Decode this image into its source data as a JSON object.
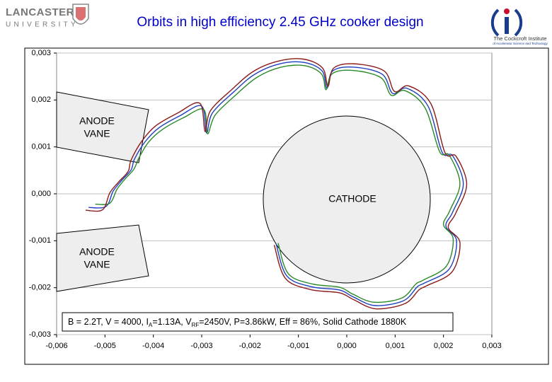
{
  "logos": {
    "left": {
      "name": "LANCASTER",
      "sub": "UNIVERSITY"
    },
    "right": {
      "name": "The Cockcroft Institute",
      "sub": "of Accelerator Science and Technology"
    }
  },
  "chart_data": {
    "type": "line",
    "title": "Orbits in high efficiency 2.45 GHz cooker design",
    "xlim": [
      -0.006,
      0.003
    ],
    "ylim": [
      -0.003,
      0.003
    ],
    "xticks": [
      {
        "value": -0.006,
        "label": "-0,006"
      },
      {
        "value": -0.005,
        "label": "-0,005"
      },
      {
        "value": -0.004,
        "label": "-0,004"
      },
      {
        "value": -0.003,
        "label": "-0,003"
      },
      {
        "value": -0.002,
        "label": "-0,002"
      },
      {
        "value": -0.001,
        "label": "-0,001"
      },
      {
        "value": 0,
        "label": "0,000"
      },
      {
        "value": 0.001,
        "label": "0,001"
      },
      {
        "value": 0.002,
        "label": "0,002"
      },
      {
        "value": 0.003,
        "label": "0,003"
      }
    ],
    "yticks": [
      {
        "value": -0.003,
        "label": "-0,003"
      },
      {
        "value": -0.002,
        "label": "-0,002"
      },
      {
        "value": -0.001,
        "label": "-0,001"
      },
      {
        "value": 0,
        "label": "0,000"
      },
      {
        "value": 0.001,
        "label": "0,001"
      },
      {
        "value": 0.002,
        "label": "0,002"
      },
      {
        "value": 0.003,
        "label": "0,003"
      }
    ],
    "ygrid": true,
    "labels": {
      "cathode": "CATHODE",
      "anode_upper": [
        "ANODE",
        "VANE"
      ],
      "anode_lower": [
        "ANODE",
        "VANE"
      ]
    },
    "annotation": [
      "B = 2.2T, V = 4000, I",
      "A",
      "=1.13A, V",
      "RF",
      "=2450V, P=3.86kW, Eff = 86%, Solid Cathode 1880K"
    ],
    "series": [
      {
        "color": "#1f3fbf",
        "x": [
          -0.00534,
          -0.00498,
          -0.00483,
          -0.00465,
          -0.00446,
          -0.00439,
          -0.00417,
          -0.00388,
          -0.00344,
          -0.003,
          -0.0029,
          -0.00278,
          -0.00234,
          -0.0019,
          -0.00139,
          -0.00088,
          -0.00051,
          -0.00041,
          -0.00029,
          0.00014,
          0.00073,
          0.00095,
          0.00124,
          0.00168,
          0.00197,
          0.00219,
          0.00241,
          0.00219,
          0.00205,
          0.00227,
          0.00212,
          0.00161,
          0.00146,
          0.00117,
          0.00058,
          0.00014,
          -0.00015,
          -0.00073,
          -0.00124,
          -0.00146
        ],
        "values": [
          -0.00029,
          -0.00027,
          6e-05,
          0.00029,
          0.00051,
          0.00074,
          0.00111,
          0.00141,
          0.00167,
          0.00187,
          0.0013,
          0.00172,
          0.00217,
          0.00255,
          0.00277,
          0.0028,
          0.00262,
          0.00225,
          0.00262,
          0.0027,
          0.00255,
          0.00214,
          0.00225,
          0.00187,
          0.00089,
          0.00081,
          0.00021,
          -0.00039,
          -0.00069,
          -0.001,
          -0.0016,
          -0.0019,
          -0.00198,
          -0.00228,
          -0.00238,
          -0.0022,
          -0.00205,
          -0.00198,
          -0.00175,
          -0.00107
        ]
      },
      {
        "color": "#2a8a2a",
        "x": [
          -0.0052,
          -0.0049,
          -0.00475,
          -0.00458,
          -0.0044,
          -0.0043,
          -0.0041,
          -0.0038,
          -0.00338,
          -0.00296,
          -0.00288,
          -0.00272,
          -0.00228,
          -0.00186,
          -0.00136,
          -0.00086,
          -0.00052,
          -0.00043,
          -0.0003,
          0.00012,
          0.0007,
          0.00092,
          0.0012,
          0.00162,
          0.00192,
          0.00212,
          0.00234,
          0.00213,
          0.002,
          0.0022,
          0.00206,
          0.00158,
          0.00143,
          0.00114,
          0.00056,
          0.00013,
          -0.00015,
          -0.00072,
          -0.00121,
          -0.00142
        ],
        "values": [
          -0.00022,
          -0.0002,
          0.0001,
          0.00032,
          0.00053,
          0.00076,
          0.0011,
          0.00138,
          0.00162,
          0.0018,
          0.00128,
          0.00168,
          0.00212,
          0.00248,
          0.0027,
          0.00273,
          0.00255,
          0.00222,
          0.00256,
          0.00263,
          0.00248,
          0.0021,
          0.0022,
          0.00183,
          0.0009,
          0.00082,
          0.00022,
          -0.00036,
          -0.00066,
          -0.00096,
          -0.00154,
          -0.00184,
          -0.00192,
          -0.00222,
          -0.00231,
          -0.00214,
          -0.00199,
          -0.00192,
          -0.0017,
          -0.00105
        ]
      },
      {
        "color": "#8b1a1a",
        "x": [
          -0.0054,
          -0.00505,
          -0.0049,
          -0.00472,
          -0.00452,
          -0.00446,
          -0.00424,
          -0.00395,
          -0.0035,
          -0.00304,
          -0.00293,
          -0.00282,
          -0.00238,
          -0.00193,
          -0.00141,
          -0.00089,
          -0.0005,
          -0.00039,
          -0.00027,
          0.00016,
          0.00077,
          0.00099,
          0.00128,
          0.00174,
          0.00203,
          0.00226,
          0.00248,
          0.00225,
          0.0021,
          0.00234,
          0.00218,
          0.00165,
          0.00149,
          0.0012,
          0.0006,
          0.00015,
          -0.00015,
          -0.00075,
          -0.00127,
          -0.0015
        ],
        "values": [
          -0.00035,
          -0.00034,
          2e-05,
          0.00025,
          0.00048,
          0.00072,
          0.00112,
          0.00145,
          0.00172,
          0.00193,
          0.00133,
          0.00177,
          0.00222,
          0.00261,
          0.00283,
          0.00287,
          0.00268,
          0.00229,
          0.00268,
          0.00277,
          0.00262,
          0.00218,
          0.0023,
          0.00192,
          0.00088,
          0.0008,
          0.0002,
          -0.00042,
          -0.00072,
          -0.00104,
          -0.00166,
          -0.00196,
          -0.00205,
          -0.00234,
          -0.00245,
          -0.00226,
          -0.00211,
          -0.00204,
          -0.0018,
          -0.00109
        ]
      }
    ]
  }
}
